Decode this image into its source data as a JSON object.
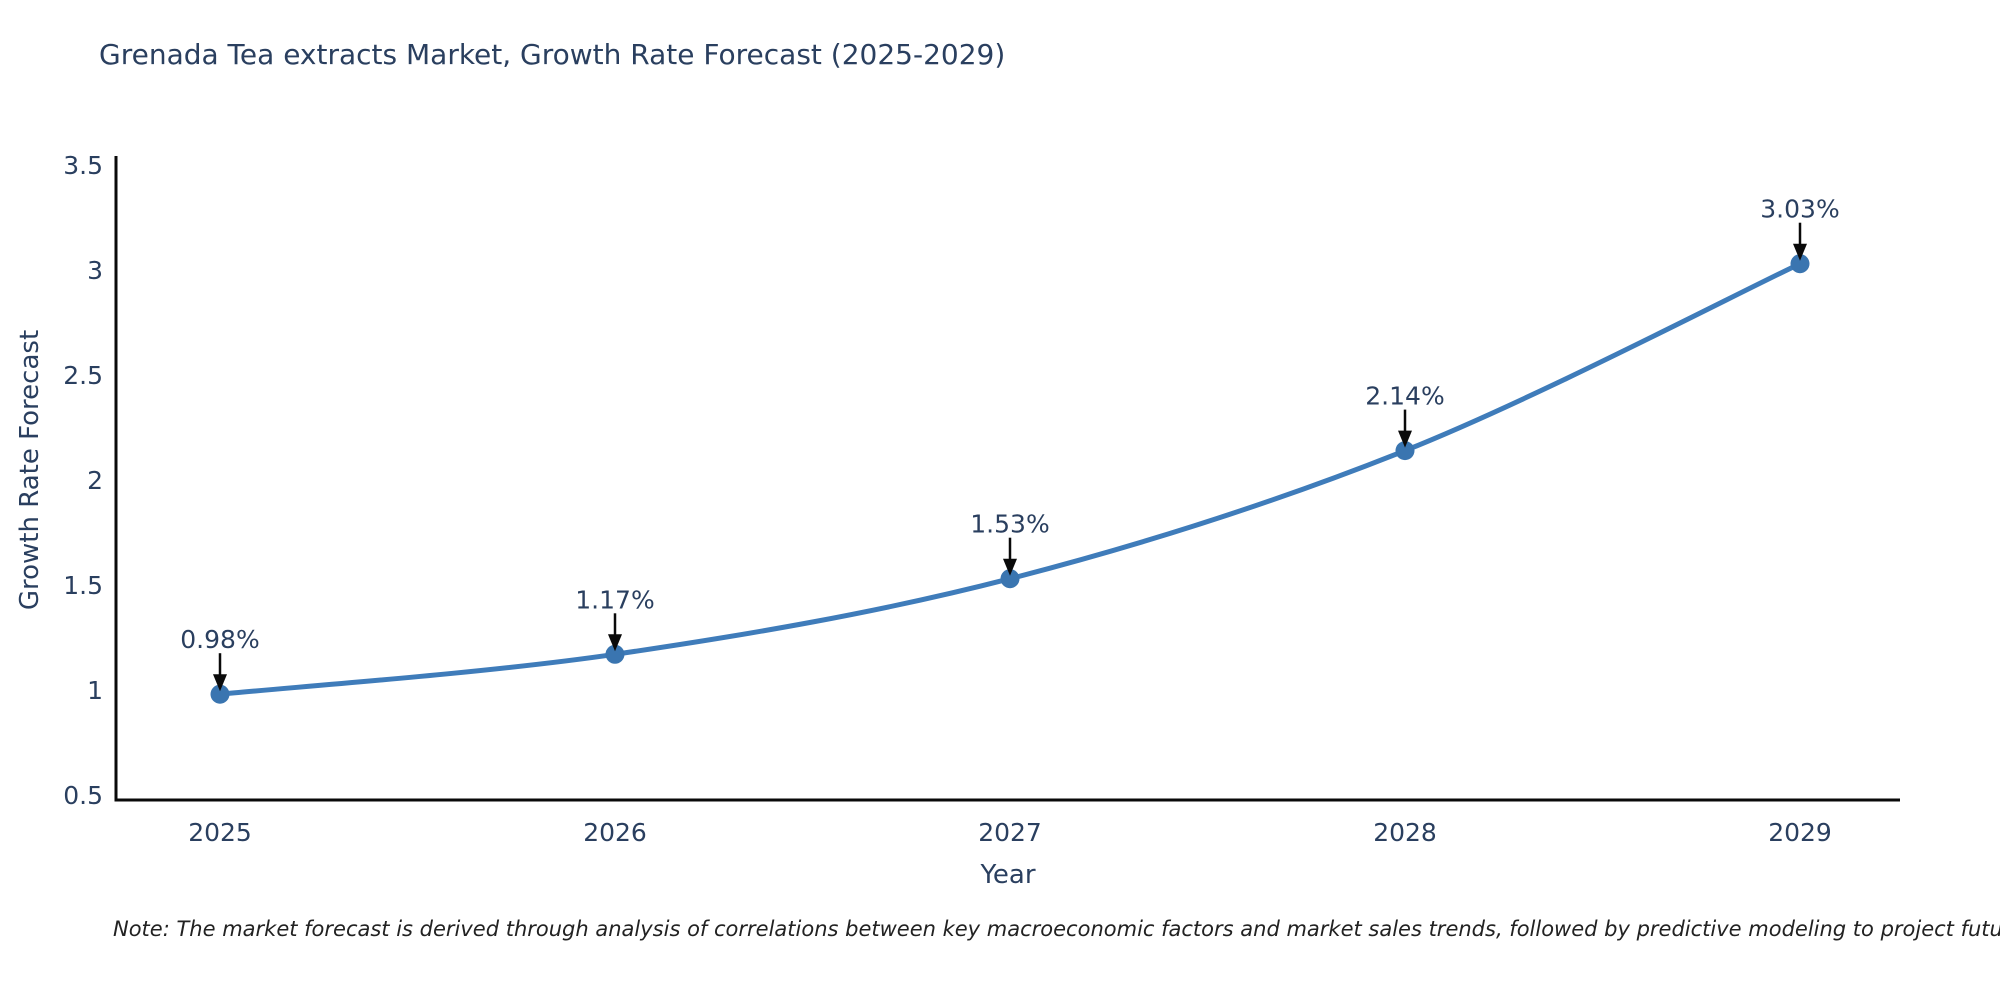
{
  "chart_data": {
    "type": "line",
    "title": "Grenada Tea extracts Market, Growth Rate Forecast (2025-2029)",
    "xlabel": "Year",
    "ylabel": "Growth Rate Forecast",
    "x": [
      "2025",
      "2026",
      "2027",
      "2028",
      "2029"
    ],
    "y": [
      0.98,
      1.17,
      1.53,
      2.14,
      3.03
    ],
    "point_labels": [
      "0.98%",
      "1.17%",
      "1.53%",
      "2.14%",
      "3.03%"
    ],
    "ylim": [
      0.5,
      3.5
    ],
    "yticks": [
      0.5,
      1,
      1.5,
      2,
      2.5,
      3,
      3.5
    ],
    "ytick_labels": [
      "0.5",
      "1",
      "1.5",
      "2",
      "2.5",
      "3",
      "3.5"
    ],
    "grid": false,
    "legend": "none",
    "colors": {
      "line": "#3f7cba",
      "marker": "#3a75b0",
      "axis": "#0a0a0a",
      "arrow": "#0a0a0a",
      "text": "#2a3f5f"
    }
  },
  "note": "Note: The market forecast is derived through analysis of correlations between key macroeconomic factors and market sales trends, followed by predictive modeling to project future sales trends."
}
